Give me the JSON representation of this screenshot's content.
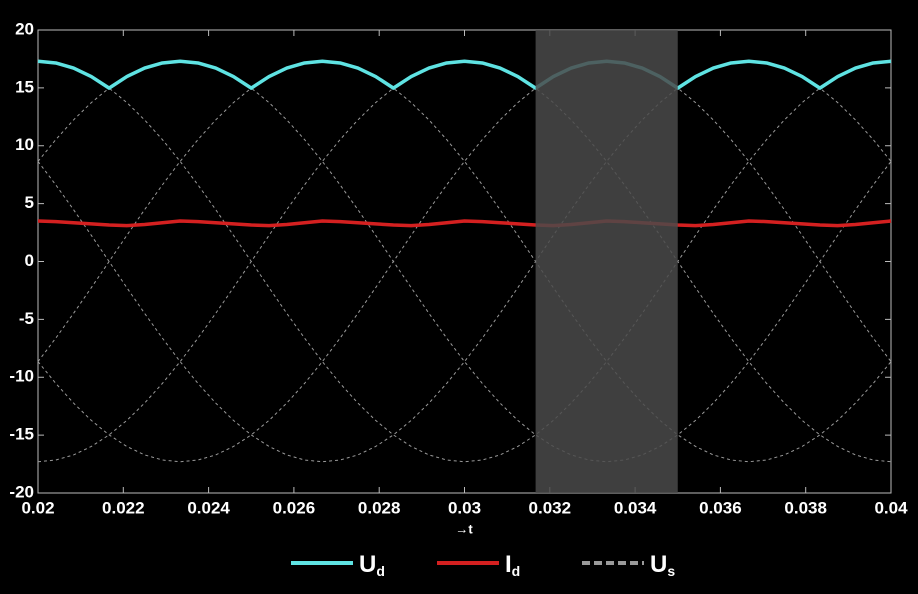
{
  "chart_data": {
    "type": "line",
    "x_label": "→t",
    "x": [
      0.02,
      0.020417,
      0.020833,
      0.02125,
      0.021667,
      0.022083,
      0.0225,
      0.022917,
      0.023333,
      0.02375,
      0.024167,
      0.024583,
      0.025,
      0.025417,
      0.025833,
      0.02625,
      0.026667,
      0.027083,
      0.0275,
      0.027917,
      0.028333,
      0.02875,
      0.029167,
      0.029583,
      0.03,
      0.030417,
      0.030833,
      0.03125,
      0.031667,
      0.032083,
      0.0325,
      0.032917,
      0.033333,
      0.03375,
      0.034167,
      0.034583,
      0.035,
      0.035417,
      0.035833,
      0.03625,
      0.036667,
      0.037083,
      0.0375,
      0.037917,
      0.038333,
      0.03875,
      0.039167,
      0.039583,
      0.04
    ],
    "series": [
      {
        "name": "Ud",
        "color": "#5fe3e3",
        "values": [
          17.3,
          17.15,
          16.71,
          15.98,
          14.98,
          15.98,
          16.71,
          17.15,
          17.3,
          17.15,
          16.71,
          15.98,
          14.98,
          15.98,
          16.71,
          17.15,
          17.3,
          17.15,
          16.71,
          15.98,
          14.98,
          15.98,
          16.71,
          17.15,
          17.3,
          17.15,
          16.71,
          15.98,
          14.98,
          15.98,
          16.71,
          17.15,
          17.3,
          17.15,
          16.71,
          15.98,
          14.98,
          15.98,
          16.71,
          17.15,
          17.3,
          17.15,
          16.71,
          15.98,
          14.98,
          15.98,
          16.71,
          17.15,
          17.3
        ]
      },
      {
        "name": "Id",
        "color": "#d42020",
        "values": [
          3.5,
          3.45,
          3.35,
          3.25,
          3.15,
          3.1,
          3.2,
          3.35,
          3.5,
          3.45,
          3.35,
          3.25,
          3.15,
          3.1,
          3.2,
          3.35,
          3.5,
          3.45,
          3.35,
          3.25,
          3.15,
          3.1,
          3.2,
          3.35,
          3.5,
          3.45,
          3.35,
          3.25,
          3.15,
          3.1,
          3.2,
          3.35,
          3.5,
          3.45,
          3.35,
          3.25,
          3.15,
          3.1,
          3.2,
          3.35,
          3.5,
          3.45,
          3.35,
          3.25,
          3.15,
          3.1,
          3.2,
          3.35,
          3.5
        ]
      },
      {
        "name": "Us",
        "color": "#9a9a9a",
        "dashed": true,
        "curves": [
          [
            17.3,
            17.15,
            16.71,
            15.98,
            14.98,
            13.73,
            12.23,
            10.53,
            8.65,
            6.62,
            4.48,
            2.26,
            0,
            -2.26,
            -4.48,
            -6.62,
            -8.65,
            -10.53,
            -12.23,
            -13.73,
            -14.98,
            -15.98,
            -16.71,
            -17.15,
            -17.3,
            -17.15,
            -16.71,
            -15.98,
            -14.98,
            -13.73,
            -12.23,
            -10.53,
            -8.65,
            -6.62,
            -4.48,
            -2.26,
            0,
            2.26,
            4.48,
            6.62,
            8.65,
            10.53,
            12.23,
            13.73,
            14.98,
            15.98,
            16.71,
            17.15,
            17.3
          ],
          [
            8.65,
            6.62,
            4.48,
            2.26,
            0,
            -2.26,
            -4.48,
            -6.62,
            -8.65,
            -10.53,
            -12.23,
            -13.73,
            -14.98,
            -15.98,
            -16.71,
            -17.15,
            -17.3,
            -17.15,
            -16.71,
            -15.98,
            -14.98,
            -13.73,
            -12.23,
            -10.53,
            -8.65,
            -6.62,
            -4.48,
            -2.26,
            0,
            2.26,
            4.48,
            6.62,
            8.65,
            10.53,
            12.23,
            13.73,
            14.98,
            15.98,
            16.71,
            17.15,
            17.3,
            17.15,
            16.71,
            15.98,
            14.98,
            13.73,
            12.23,
            10.53,
            8.65
          ],
          [
            -8.65,
            -10.53,
            -12.23,
            -13.73,
            -14.98,
            -15.98,
            -16.71,
            -17.15,
            -17.3,
            -17.15,
            -16.71,
            -15.98,
            -14.98,
            -13.73,
            -12.23,
            -10.53,
            -8.65,
            -6.62,
            -4.48,
            -2.26,
            0,
            2.26,
            4.48,
            6.62,
            8.65,
            10.53,
            12.23,
            13.73,
            14.98,
            15.98,
            16.71,
            17.15,
            17.3,
            17.15,
            16.71,
            15.98,
            14.98,
            13.73,
            12.23,
            10.53,
            8.65,
            6.62,
            4.48,
            2.26,
            0,
            -2.26,
            -4.48,
            -6.62,
            -8.65
          ],
          [
            -17.3,
            -17.15,
            -16.71,
            -15.98,
            -14.98,
            -13.73,
            -12.23,
            -10.53,
            -8.65,
            -6.62,
            -4.48,
            -2.26,
            0,
            2.26,
            4.48,
            6.62,
            8.65,
            10.53,
            12.23,
            13.73,
            14.98,
            15.98,
            16.71,
            17.15,
            17.3,
            17.15,
            16.71,
            15.98,
            14.98,
            13.73,
            12.23,
            10.53,
            8.65,
            6.62,
            4.48,
            2.26,
            0,
            -2.26,
            -4.48,
            -6.62,
            -8.65,
            -10.53,
            -12.23,
            -13.73,
            -14.98,
            -15.98,
            -16.71,
            -17.15,
            -17.3
          ],
          [
            -8.65,
            -6.62,
            -4.48,
            -2.26,
            0,
            2.26,
            4.48,
            6.62,
            8.65,
            10.53,
            12.23,
            13.73,
            14.98,
            15.98,
            16.71,
            17.15,
            17.3,
            17.15,
            16.71,
            15.98,
            14.98,
            13.73,
            12.23,
            10.53,
            8.65,
            6.62,
            4.48,
            2.26,
            0,
            -2.26,
            -4.48,
            -6.62,
            -8.65,
            -10.53,
            -12.23,
            -13.73,
            -14.98,
            -15.98,
            -16.71,
            -17.15,
            -17.3,
            -17.15,
            -16.71,
            -15.98,
            -14.98,
            -13.73,
            -12.23,
            -10.53,
            -8.65
          ],
          [
            8.65,
            10.53,
            12.23,
            13.73,
            14.98,
            15.98,
            16.71,
            17.15,
            17.3,
            17.15,
            16.71,
            15.98,
            14.98,
            13.73,
            12.23,
            10.53,
            8.65,
            6.62,
            4.48,
            2.26,
            0,
            -2.26,
            -4.48,
            -6.62,
            -8.65,
            -10.53,
            -12.23,
            -13.73,
            -14.98,
            -15.98,
            -16.71,
            -17.15,
            -17.3,
            -17.15,
            -16.71,
            -15.98,
            -14.98,
            -13.73,
            -12.23,
            -10.53,
            -8.65,
            -6.62,
            -4.48,
            -2.26,
            0,
            2.26,
            4.48,
            6.62,
            8.65
          ]
        ]
      }
    ],
    "highlight_x": [
      0.031667,
      0.035
    ],
    "highlight_color": "#4a4a4a",
    "xlim": [
      0.02,
      0.04
    ],
    "xticks": [
      0.02,
      0.022,
      0.024,
      0.026,
      0.028,
      0.03,
      0.032,
      0.034,
      0.036,
      0.038,
      0.04
    ],
    "ylim": [
      -20,
      20
    ],
    "yticks": [
      -20,
      -15,
      -10,
      -5,
      0,
      5,
      10,
      15,
      20
    ],
    "grid": false,
    "legend": "bottom"
  }
}
